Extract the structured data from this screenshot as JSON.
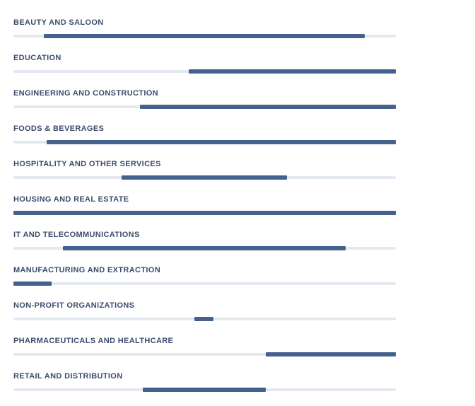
{
  "page": {
    "background": "#ffffff"
  },
  "colors": {
    "bar_segment": "#45628f",
    "bar_track": "#e4e9f1",
    "label_text": "#3c4c6e"
  },
  "chart_data": {
    "type": "bar",
    "subtype": "horizontal-range",
    "title": "",
    "xlabel": "",
    "ylabel": "",
    "legend": false,
    "grid": false,
    "axis_labels_visible": false,
    "value_units": "percent_of_track_width",
    "xlim": [
      0,
      100
    ],
    "categories": [
      "BEAUTY AND SALOON",
      "EDUCATION",
      "ENGINEERING AND CONSTRUCTION",
      "FOODS & BEVERAGES",
      "HOSPITALITY AND OTHER SERVICES",
      "HOUSING AND REAL ESTATE",
      "IT AND TELECOMMUNICATIONS",
      "MANUFACTURING AND EXTRACTION",
      "NON-PROFIT ORGANIZATIONS",
      "PHARMACEUTICALS AND HEALTHCARE",
      "RETAIL AND DISTRIBUTION"
    ],
    "series": [
      {
        "name": "range",
        "values": [
          [
            8.0,
            91.9
          ],
          [
            45.9,
            100.0
          ],
          [
            33.0,
            100.0
          ],
          [
            8.7,
            100.0
          ],
          [
            28.3,
            71.5
          ],
          [
            0.0,
            100.0
          ],
          [
            13.0,
            86.9
          ],
          [
            0.0,
            10.0
          ],
          [
            47.4,
            52.4
          ],
          [
            65.9,
            100.0
          ],
          [
            33.9,
            65.9
          ]
        ]
      }
    ]
  }
}
